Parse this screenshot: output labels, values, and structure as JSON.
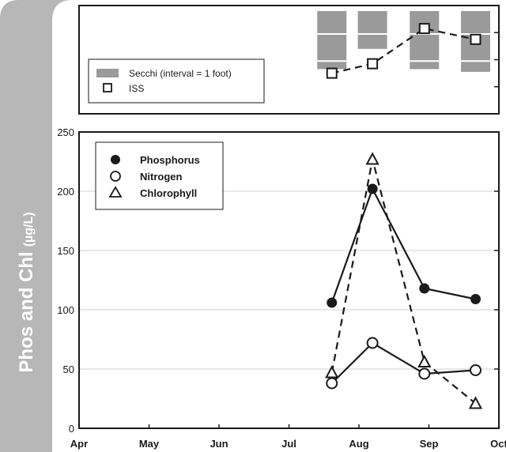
{
  "colors": {
    "sidebar": "#b7b7b7",
    "secchi": "#9a9a9a",
    "grid": "#d0d0d0",
    "line": "#1a1a1a"
  },
  "ylabel": {
    "main": "Phos and Chl",
    "unit": "(µg/L)"
  },
  "chart_data": [
    {
      "type": "line",
      "panel": "top",
      "legend_placement": "bottom-left",
      "series": [
        {
          "name": "Secchi (interval = 1 foot)",
          "kind": "bar-interval",
          "x": [
            "Jul 20",
            "Aug 7",
            "Aug 30",
            "Sep 21"
          ],
          "intervals": [
            {
              "top": 0,
              "bottom": 2.35,
              "lines": [
                1.05,
                2.05
              ]
            },
            {
              "top": 0,
              "bottom": 1.6,
              "lines": [
                1.05
              ]
            },
            {
              "top": 0,
              "bottom": 2.35,
              "lines": [
                1.05,
                2.05
              ]
            },
            {
              "top": 0,
              "bottom": 2.45,
              "lines": [
                1.05,
                2.05
              ]
            }
          ]
        },
        {
          "name": "ISS",
          "marker": "open-square",
          "line": "dashed",
          "x": [
            "Jul 20",
            "Aug 7",
            "Aug 30",
            "Sep 21"
          ],
          "values": [
            2.5,
            2.15,
            0.85,
            1.25
          ]
        }
      ],
      "ylim": [
        0,
        4.0
      ],
      "grid": false
    },
    {
      "type": "line",
      "panel": "bottom",
      "ylabel": "Phos and Chl (µg/L)",
      "xlabel": "",
      "categories": [
        "Apr",
        "May",
        "Jun",
        "Jul",
        "Aug",
        "Sep",
        "Oct"
      ],
      "yticks": [
        0,
        50,
        100,
        150,
        200,
        250
      ],
      "ylim": [
        0,
        250
      ],
      "grid": true,
      "legend_placement": "top-left",
      "series": [
        {
          "name": "Phosphorus",
          "marker": "filled-circle",
          "line": "solid",
          "x": [
            "Jul 20",
            "Aug 7",
            "Aug 30",
            "Sep 21"
          ],
          "values": [
            106,
            202,
            118,
            109
          ]
        },
        {
          "name": "Nitrogen",
          "marker": "open-circle",
          "line": "solid",
          "x": [
            "Jul 20",
            "Aug 7",
            "Aug 30",
            "Sep 21"
          ],
          "values": [
            38,
            72,
            46,
            49
          ]
        },
        {
          "name": "Chlorophyll",
          "marker": "open-triangle",
          "line": "dashed",
          "x": [
            "Jul 20",
            "Aug 7",
            "Aug 30",
            "Sep 21"
          ],
          "values": [
            47,
            227,
            56,
            21
          ]
        }
      ]
    }
  ]
}
